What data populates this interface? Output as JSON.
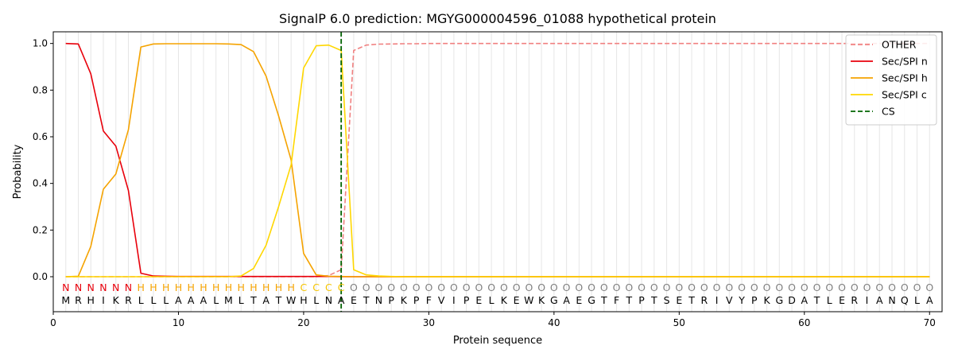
{
  "chart_data": {
    "type": "line",
    "title": "SignalP 6.0 prediction: MGYG000004596_01088 hypothetical protein",
    "xlabel": "Protein sequence",
    "ylabel": "Probability",
    "xlim": [
      0,
      71
    ],
    "ylim": [
      -0.15,
      1.05
    ],
    "x_ticks": [
      0,
      10,
      20,
      30,
      40,
      50,
      60,
      70
    ],
    "y_ticks": [
      0.0,
      0.2,
      0.4,
      0.6,
      0.8,
      1.0
    ],
    "x_tick_labels": [
      "0",
      "10",
      "20",
      "30",
      "40",
      "50",
      "60",
      "70"
    ],
    "y_tick_labels": [
      "0.0",
      "0.2",
      "0.4",
      "0.6",
      "0.8",
      "1.0"
    ],
    "grid": "vertical lines at each residue",
    "legend_position": "top-right",
    "sequence": [
      "M",
      "R",
      "H",
      "I",
      "K",
      "R",
      "L",
      "L",
      "L",
      "A",
      "A",
      "A",
      "L",
      "M",
      "L",
      "T",
      "A",
      "T",
      "W",
      "H",
      "L",
      "N",
      "A",
      "E",
      "T",
      "N",
      "P",
      "K",
      "P",
      "F",
      "V",
      "I",
      "P",
      "E",
      "L",
      "K",
      "E",
      "W",
      "K",
      "G",
      "A",
      "E",
      "G",
      "T",
      "F",
      "T",
      "P",
      "T",
      "S",
      "E",
      "T",
      "R",
      "I",
      "V",
      "Y",
      "P",
      "K",
      "G",
      "D",
      "A",
      "T",
      "L",
      "E",
      "R",
      "I",
      "A",
      "N",
      "Q",
      "L",
      "A"
    ],
    "labels": [
      "N",
      "N",
      "N",
      "N",
      "N",
      "N",
      "H",
      "H",
      "H",
      "H",
      "H",
      "H",
      "H",
      "H",
      "H",
      "H",
      "H",
      "H",
      "H",
      "C",
      "C",
      "C",
      "C",
      "O",
      "O",
      "O",
      "O",
      "O",
      "O",
      "O",
      "O",
      "O",
      "O",
      "O",
      "O",
      "O",
      "O",
      "O",
      "O",
      "O",
      "O",
      "O",
      "O",
      "O",
      "O",
      "O",
      "O",
      "O",
      "O",
      "O",
      "O",
      "O",
      "O",
      "O",
      "O",
      "O",
      "O",
      "O",
      "O",
      "O",
      "O",
      "O",
      "O",
      "O",
      "O",
      "O",
      "O",
      "O",
      "O",
      "O"
    ],
    "label_colors": {
      "N": "#e8000b",
      "H": "#f5a300",
      "C": "#f5c400",
      "O": "#808080"
    },
    "series": [
      {
        "name": "OTHER",
        "color": "#f08080",
        "dash": "dashed",
        "values": [
          0,
          0,
          0,
          0,
          0,
          0,
          0,
          0,
          0,
          0,
          0,
          0,
          0,
          0,
          0,
          0,
          0,
          0,
          0,
          0,
          0,
          0.005,
          0.03,
          0.97,
          0.993,
          0.997,
          0.998,
          0.999,
          0.999,
          1,
          1,
          1,
          1,
          1,
          1,
          1,
          1,
          1,
          1,
          1,
          1,
          1,
          1,
          1,
          1,
          1,
          1,
          1,
          1,
          1,
          1,
          1,
          1,
          1,
          1,
          1,
          1,
          1,
          1,
          1,
          1,
          1,
          1,
          1,
          1,
          1,
          1,
          1,
          1,
          1
        ]
      },
      {
        "name": "Sec/SPI n",
        "color": "#e8000b",
        "dash": "solid",
        "values": [
          1.0,
          0.998,
          0.87,
          0.625,
          0.56,
          0.37,
          0.015,
          0.003,
          0.002,
          0.001,
          0.001,
          0.001,
          0.001,
          0.001,
          0.001,
          0.001,
          0.001,
          0.001,
          0.001,
          0.001,
          0.001,
          0.001,
          0,
          0,
          0,
          0,
          0,
          0,
          0,
          0,
          0,
          0,
          0,
          0,
          0,
          0,
          0,
          0,
          0,
          0,
          0,
          0,
          0,
          0,
          0,
          0,
          0,
          0,
          0,
          0,
          0,
          0,
          0,
          0,
          0,
          0,
          0,
          0,
          0,
          0,
          0,
          0,
          0,
          0,
          0,
          0,
          0,
          0,
          0,
          0
        ]
      },
      {
        "name": "Sec/SPI h",
        "color": "#f5a300",
        "dash": "solid",
        "values": [
          0,
          0.002,
          0.13,
          0.375,
          0.44,
          0.63,
          0.985,
          0.998,
          0.999,
          0.999,
          0.999,
          0.999,
          0.999,
          0.998,
          0.995,
          0.965,
          0.86,
          0.69,
          0.5,
          0.1,
          0.008,
          0.002,
          0.001,
          0,
          0,
          0,
          0,
          0,
          0,
          0,
          0,
          0,
          0,
          0,
          0,
          0,
          0,
          0,
          0,
          0,
          0,
          0,
          0,
          0,
          0,
          0,
          0,
          0,
          0,
          0,
          0,
          0,
          0,
          0,
          0,
          0,
          0,
          0,
          0,
          0,
          0,
          0,
          0,
          0,
          0,
          0,
          0,
          0,
          0,
          0
        ]
      },
      {
        "name": "Sec/SPI c",
        "color": "#ffd700",
        "dash": "solid",
        "values": [
          0,
          0,
          0,
          0,
          0,
          0,
          0,
          0,
          0,
          0,
          0,
          0,
          0,
          0,
          0.003,
          0.035,
          0.135,
          0.3,
          0.48,
          0.895,
          0.99,
          0.993,
          0.97,
          0.03,
          0.008,
          0.003,
          0.001,
          0,
          0,
          0,
          0,
          0,
          0,
          0,
          0,
          0,
          0,
          0,
          0,
          0,
          0,
          0,
          0,
          0,
          0,
          0,
          0,
          0,
          0,
          0,
          0,
          0,
          0,
          0,
          0,
          0,
          0,
          0,
          0,
          0,
          0,
          0,
          0,
          0,
          0,
          0,
          0,
          0,
          0,
          0
        ]
      }
    ],
    "cs": {
      "name": "CS",
      "x": 23,
      "color": "#006400",
      "dash": "dashed"
    }
  }
}
